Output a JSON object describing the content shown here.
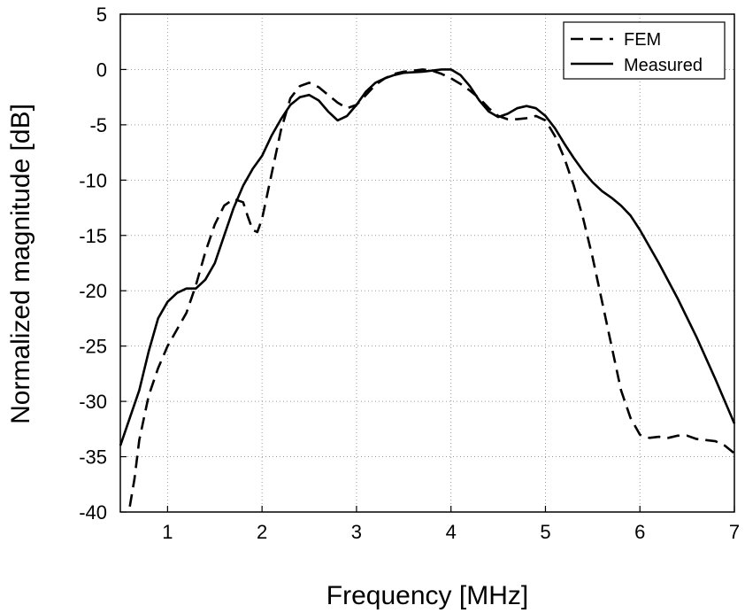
{
  "chart_data": {
    "type": "line",
    "xlabel": "Frequency [MHz]",
    "ylabel": "Normalized magnitude [dB]",
    "xlim": [
      0.5,
      7
    ],
    "ylim": [
      -40,
      5
    ],
    "xticks": [
      1,
      2,
      3,
      4,
      5,
      6,
      7
    ],
    "yticks": [
      5,
      0,
      -5,
      -10,
      -15,
      -20,
      -25,
      -30,
      -35,
      -40
    ],
    "grid": true,
    "legend_position": "top-right",
    "series": [
      {
        "name": "FEM",
        "style": "dashed",
        "color": "#000000",
        "x": [
          0.6,
          0.65,
          0.7,
          0.8,
          0.9,
          1.0,
          1.1,
          1.2,
          1.3,
          1.4,
          1.5,
          1.6,
          1.7,
          1.8,
          1.85,
          1.9,
          1.95,
          2.0,
          2.05,
          2.1,
          2.2,
          2.3,
          2.4,
          2.5,
          2.6,
          2.7,
          2.8,
          2.9,
          3.0,
          3.1,
          3.2,
          3.3,
          3.4,
          3.5,
          3.6,
          3.7,
          3.8,
          3.9,
          4.0,
          4.1,
          4.2,
          4.3,
          4.4,
          4.5,
          4.6,
          4.7,
          4.8,
          4.9,
          5.0,
          5.1,
          5.2,
          5.3,
          5.4,
          5.5,
          5.6,
          5.7,
          5.8,
          5.9,
          6.0,
          6.1,
          6.2,
          6.3,
          6.4,
          6.5,
          6.6,
          6.7,
          6.8,
          6.9,
          7.0
        ],
        "y": [
          -39.5,
          -37,
          -33.5,
          -29.5,
          -27,
          -25,
          -23.5,
          -22,
          -19.5,
          -16.5,
          -14,
          -12.3,
          -11.7,
          -12,
          -13.3,
          -14.5,
          -14.7,
          -13.5,
          -11.5,
          -9.5,
          -5.5,
          -2.6,
          -1.5,
          -1.2,
          -1.6,
          -2.3,
          -3.0,
          -3.5,
          -3.2,
          -2.3,
          -1.4,
          -0.8,
          -0.4,
          -0.2,
          -0.1,
          0,
          -0.1,
          -0.4,
          -0.8,
          -1.3,
          -1.9,
          -2.6,
          -3.5,
          -4.2,
          -4.5,
          -4.5,
          -4.4,
          -4.2,
          -4.6,
          -6.0,
          -8.0,
          -10.5,
          -13.5,
          -17.0,
          -21.0,
          -25.0,
          -29.0,
          -31.5,
          -33.0,
          -33.3,
          -33.2,
          -33.3,
          -33.1,
          -33.1,
          -33.4,
          -33.5,
          -33.6,
          -34.0,
          -34.7
        ]
      },
      {
        "name": "Measured",
        "style": "solid",
        "color": "#000000",
        "x": [
          0.5,
          0.6,
          0.7,
          0.8,
          0.9,
          1.0,
          1.1,
          1.2,
          1.3,
          1.4,
          1.5,
          1.6,
          1.7,
          1.8,
          1.9,
          2.0,
          2.1,
          2.2,
          2.3,
          2.4,
          2.5,
          2.6,
          2.7,
          2.8,
          2.9,
          3.0,
          3.1,
          3.2,
          3.3,
          3.4,
          3.5,
          3.6,
          3.7,
          3.8,
          3.9,
          4.0,
          4.1,
          4.2,
          4.3,
          4.4,
          4.5,
          4.6,
          4.7,
          4.8,
          4.9,
          5.0,
          5.1,
          5.2,
          5.3,
          5.4,
          5.5,
          5.6,
          5.7,
          5.8,
          5.9,
          6.0,
          6.2,
          6.4,
          6.6,
          6.8,
          7.0
        ],
        "y": [
          -34,
          -31.5,
          -29,
          -25.5,
          -22.5,
          -21,
          -20.2,
          -19.8,
          -19.8,
          -19,
          -17.5,
          -15,
          -12.5,
          -10.5,
          -9,
          -7.8,
          -6,
          -4.5,
          -3.2,
          -2.5,
          -2.3,
          -2.8,
          -3.8,
          -4.6,
          -4.2,
          -3.2,
          -2.0,
          -1.2,
          -0.8,
          -0.5,
          -0.3,
          -0.25,
          -0.2,
          -0.1,
          0,
          0,
          -0.5,
          -1.5,
          -2.8,
          -3.8,
          -4.3,
          -4.0,
          -3.5,
          -3.3,
          -3.5,
          -4.2,
          -5.3,
          -6.7,
          -8.0,
          -9.2,
          -10.2,
          -11.0,
          -11.6,
          -12.3,
          -13.2,
          -14.5,
          -17.5,
          -20.7,
          -24.2,
          -28,
          -32
        ]
      }
    ]
  }
}
